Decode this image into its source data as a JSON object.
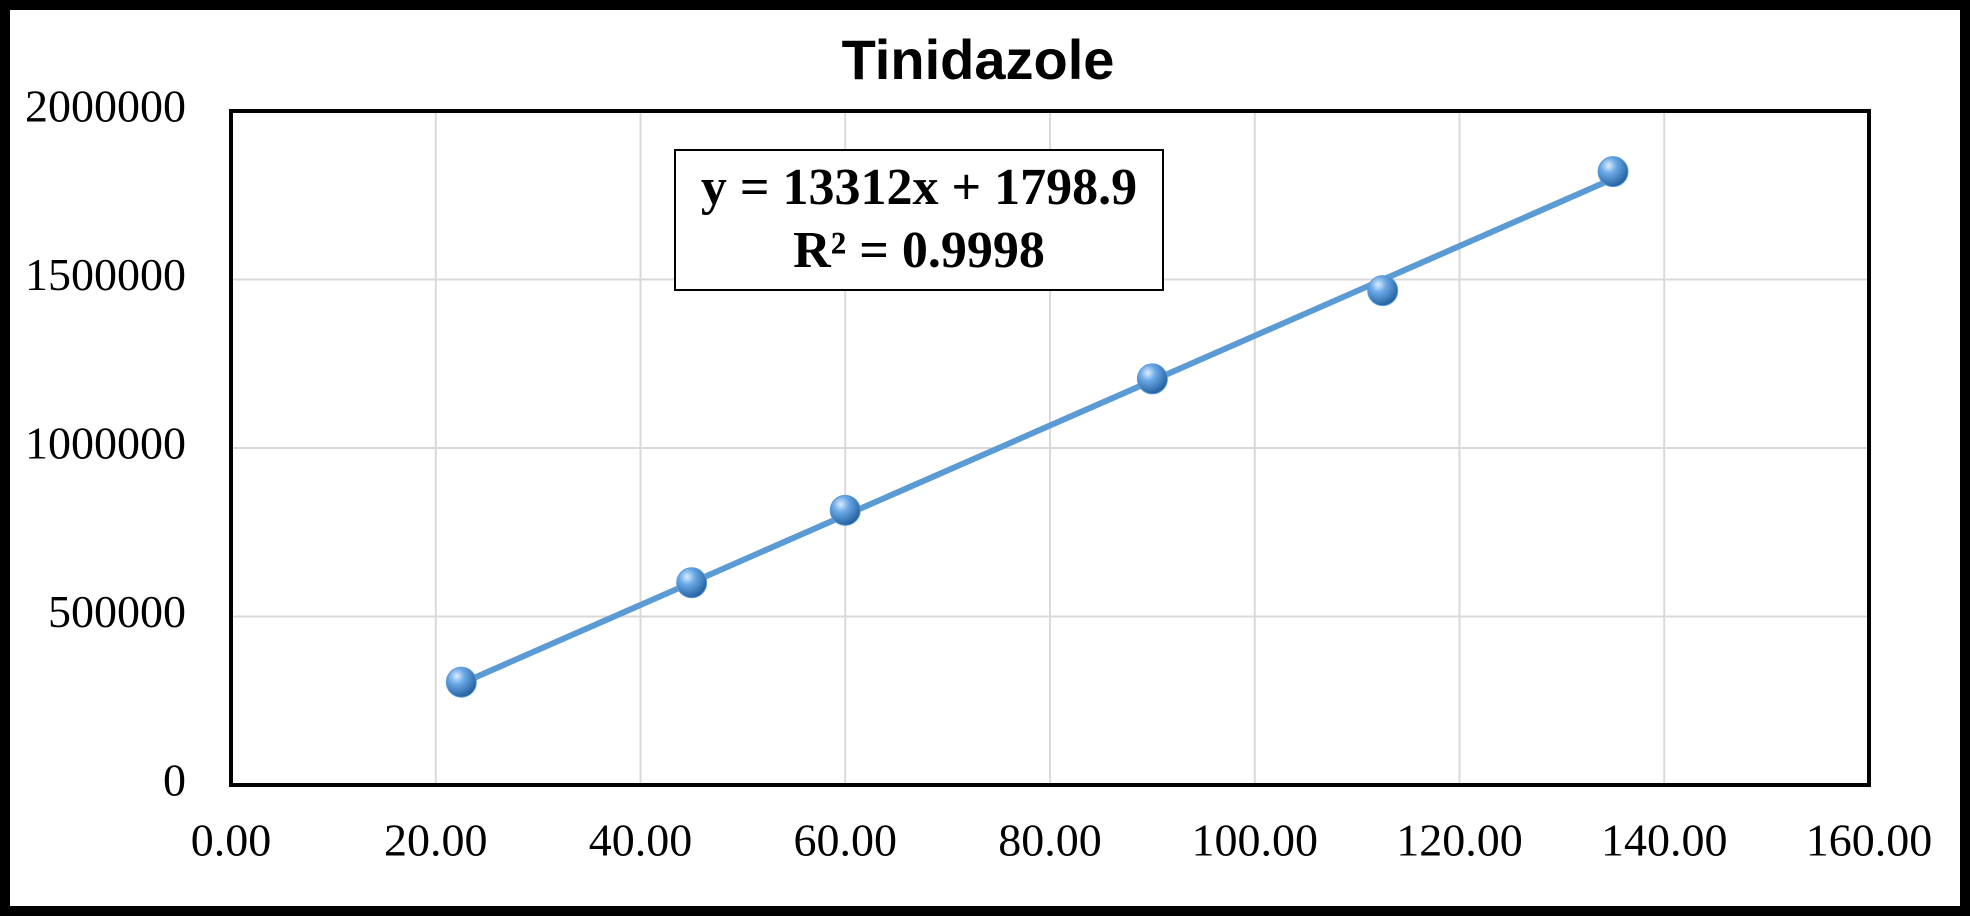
{
  "chart_data": {
    "type": "scatter",
    "title": "Tinidazole",
    "series": [
      {
        "name": "Tinidazole",
        "color": "#5b9bd5",
        "x": [
          22.5,
          45,
          60,
          90,
          112.5,
          135
        ],
        "values": [
          305000,
          600000,
          815000,
          1205000,
          1467000,
          1820000
        ]
      }
    ],
    "trendline": {
      "label": "y = 13312x + 1798.9",
      "r2_label": "R² = 0.9998",
      "slope": 13312,
      "intercept": 1798.9,
      "color": "#5b9bd5"
    },
    "xlim": [
      0,
      160
    ],
    "xticks": [
      {
        "value": 0,
        "label": "0.00"
      },
      {
        "value": 20,
        "label": "20.00"
      },
      {
        "value": 40,
        "label": "40.00"
      },
      {
        "value": 60,
        "label": "60.00"
      },
      {
        "value": 80,
        "label": "80.00"
      },
      {
        "value": 100,
        "label": "100.00"
      },
      {
        "value": 120,
        "label": "120.00"
      },
      {
        "value": 140,
        "label": "140.00"
      },
      {
        "value": 160,
        "label": "160.00"
      }
    ],
    "ylim": [
      0,
      2000000
    ],
    "yticks": [
      0,
      500000,
      1000000,
      1500000,
      2000000
    ],
    "grid": true
  }
}
